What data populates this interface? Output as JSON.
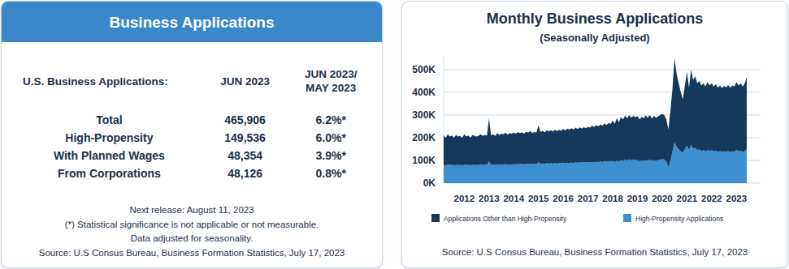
{
  "table": {
    "title": "Business Applications",
    "header": [
      "U.S. Business Applications:",
      "JUN 2023",
      "JUN 2023/\nMAY 2023"
    ],
    "rows": [
      [
        "Total",
        "465,906",
        "6.2%*"
      ],
      [
        "High-Propensity",
        "149,536",
        "6.0%*"
      ],
      [
        "With Planned Wages",
        "48,354",
        "3.9%*"
      ],
      [
        "From Corporations",
        "48,126",
        "0.8%*"
      ]
    ],
    "notes": [
      "Next release: August 11, 2023",
      "(*) Statistical significance is not applicable or not measurable.",
      "Data adjusted for seasonality.",
      "Source: U.S Consus Bureau, Business Formation Statistics, July 17, 2023"
    ]
  },
  "chart_data": {
    "type": "area",
    "title": "Monthly Business Applications",
    "subtitle": "(Seasonally Adjusted)",
    "source": "Source: U.S Consus Bureau, Business Formation Statistics, July 17, 2023",
    "stacked": true,
    "grid": true,
    "legend": "bottom",
    "ylim": [
      0,
      560000
    ],
    "yticks": [
      {
        "value": 0,
        "label": "0K"
      },
      {
        "value": 100000,
        "label": "100K"
      },
      {
        "value": 200000,
        "label": "200K"
      },
      {
        "value": 300000,
        "label": "300K"
      },
      {
        "value": 400000,
        "label": "400K"
      },
      {
        "value": 500000,
        "label": "500K"
      }
    ],
    "categories": [
      null,
      null,
      null,
      null,
      null,
      null,
      null,
      null,
      null,
      null,
      "2012",
      null,
      null,
      null,
      null,
      null,
      null,
      null,
      null,
      null,
      null,
      null,
      "2013",
      null,
      null,
      null,
      null,
      null,
      null,
      null,
      null,
      null,
      null,
      null,
      "2014",
      null,
      null,
      null,
      null,
      null,
      null,
      null,
      null,
      null,
      null,
      null,
      "2015",
      null,
      null,
      null,
      null,
      null,
      null,
      null,
      null,
      null,
      null,
      null,
      "2016",
      null,
      null,
      null,
      null,
      null,
      null,
      null,
      null,
      null,
      null,
      null,
      "2017",
      null,
      null,
      null,
      null,
      null,
      null,
      null,
      null,
      null,
      null,
      null,
      "2018",
      null,
      null,
      null,
      null,
      null,
      null,
      null,
      null,
      null,
      null,
      null,
      "2019",
      null,
      null,
      null,
      null,
      null,
      null,
      null,
      null,
      null,
      null,
      null,
      "2020",
      null,
      null,
      null,
      null,
      null,
      null,
      null,
      null,
      null,
      null,
      null,
      "2021",
      null,
      null,
      null,
      null,
      null,
      null,
      null,
      null,
      null,
      null,
      null,
      "2022",
      null,
      null,
      null,
      null,
      null,
      null,
      null,
      null,
      null,
      null,
      null,
      "2023",
      null,
      null,
      null,
      null,
      null
    ],
    "series": [
      {
        "name": "Applications Other than High-Propensity",
        "color": "#15395b",
        "values": [
          130000,
          122000,
          133000,
          125000,
          128000,
          122000,
          132000,
          126000,
          128000,
          122000,
          133000,
          125000,
          129000,
          122000,
          130000,
          128000,
          126000,
          129000,
          132000,
          128000,
          130000,
          129000,
          190000,
          130000,
          133000,
          129000,
          137000,
          131000,
          135000,
          133000,
          138000,
          133000,
          137000,
          136000,
          138000,
          136000,
          140000,
          137000,
          139000,
          136000,
          140000,
          138000,
          142000,
          138000,
          140000,
          139000,
          163000,
          140000,
          143000,
          140000,
          144000,
          142000,
          145000,
          142000,
          146000,
          143000,
          146000,
          144000,
          148000,
          145000,
          150000,
          147000,
          151000,
          148000,
          152000,
          149000,
          153000,
          150000,
          154000,
          151000,
          155000,
          154000,
          159000,
          156000,
          161000,
          158000,
          163000,
          160000,
          166000,
          162000,
          168000,
          165000,
          177000,
          170000,
          185000,
          174000,
          190000,
          183000,
          194000,
          186000,
          196000,
          188000,
          193000,
          189000,
          193000,
          184000,
          192000,
          187000,
          196000,
          189000,
          197000,
          187000,
          195000,
          189000,
          193000,
          197000,
          200000,
          197000,
          185000,
          165000,
          220000,
          280000,
          370000,
          320000,
          290000,
          260000,
          235000,
          280000,
          325000,
          275000,
          332000,
          303000,
          315000,
          295000,
          302000,
          288000,
          295000,
          285000,
          299000,
          288000,
          295000,
          285000,
          292000,
          282000,
          289000,
          281000,
          288000,
          284000,
          291000,
          283000,
          290000,
          286000,
          299000,
          289000,
          297000,
          287000,
          297634,
          316370
        ]
      },
      {
        "name": "High-Propensity Applications",
        "color": "#3e8fcf",
        "values": [
          80000,
          78000,
          82000,
          80000,
          82000,
          78000,
          80000,
          79000,
          80000,
          78000,
          82000,
          80000,
          81000,
          78000,
          82000,
          80000,
          79000,
          81000,
          83000,
          80000,
          82000,
          81000,
          95000,
          80000,
          82000,
          79000,
          83000,
          81000,
          83000,
          82000,
          84000,
          81000,
          83000,
          82000,
          84000,
          82000,
          85000,
          83000,
          85000,
          82000,
          86000,
          84000,
          86000,
          83000,
          85000,
          84000,
          92000,
          85000,
          87000,
          84000,
          88000,
          86000,
          88000,
          85000,
          89000,
          86000,
          88000,
          87000,
          90000,
          87000,
          90000,
          88000,
          91000,
          88000,
          92000,
          89000,
          92000,
          90000,
          92000,
          91000,
          93000,
          90000,
          93000,
          91000,
          94000,
          92000,
          95000,
          93000,
          96000,
          94000,
          97000,
          95000,
          98000,
          92000,
          100000,
          94000,
          102000,
          97000,
          104000,
          99000,
          104000,
          100000,
          103000,
          101000,
          102000,
          96000,
          100000,
          98000,
          102000,
          99000,
          103000,
          98000,
          101000,
          99000,
          101000,
          103000,
          105000,
          103000,
          95000,
          70000,
          100000,
          140000,
          180000,
          160000,
          150000,
          140000,
          135000,
          150000,
          165000,
          145000,
          168000,
          152000,
          155000,
          145000,
          148000,
          142000,
          145000,
          140000,
          146000,
          142000,
          145000,
          140000,
          143000,
          138000,
          141000,
          137000,
          140000,
          138000,
          141000,
          137000,
          140000,
          139000,
          146000,
          141000,
          143000,
          138000,
          141072,
          149536
        ]
      }
    ]
  }
}
